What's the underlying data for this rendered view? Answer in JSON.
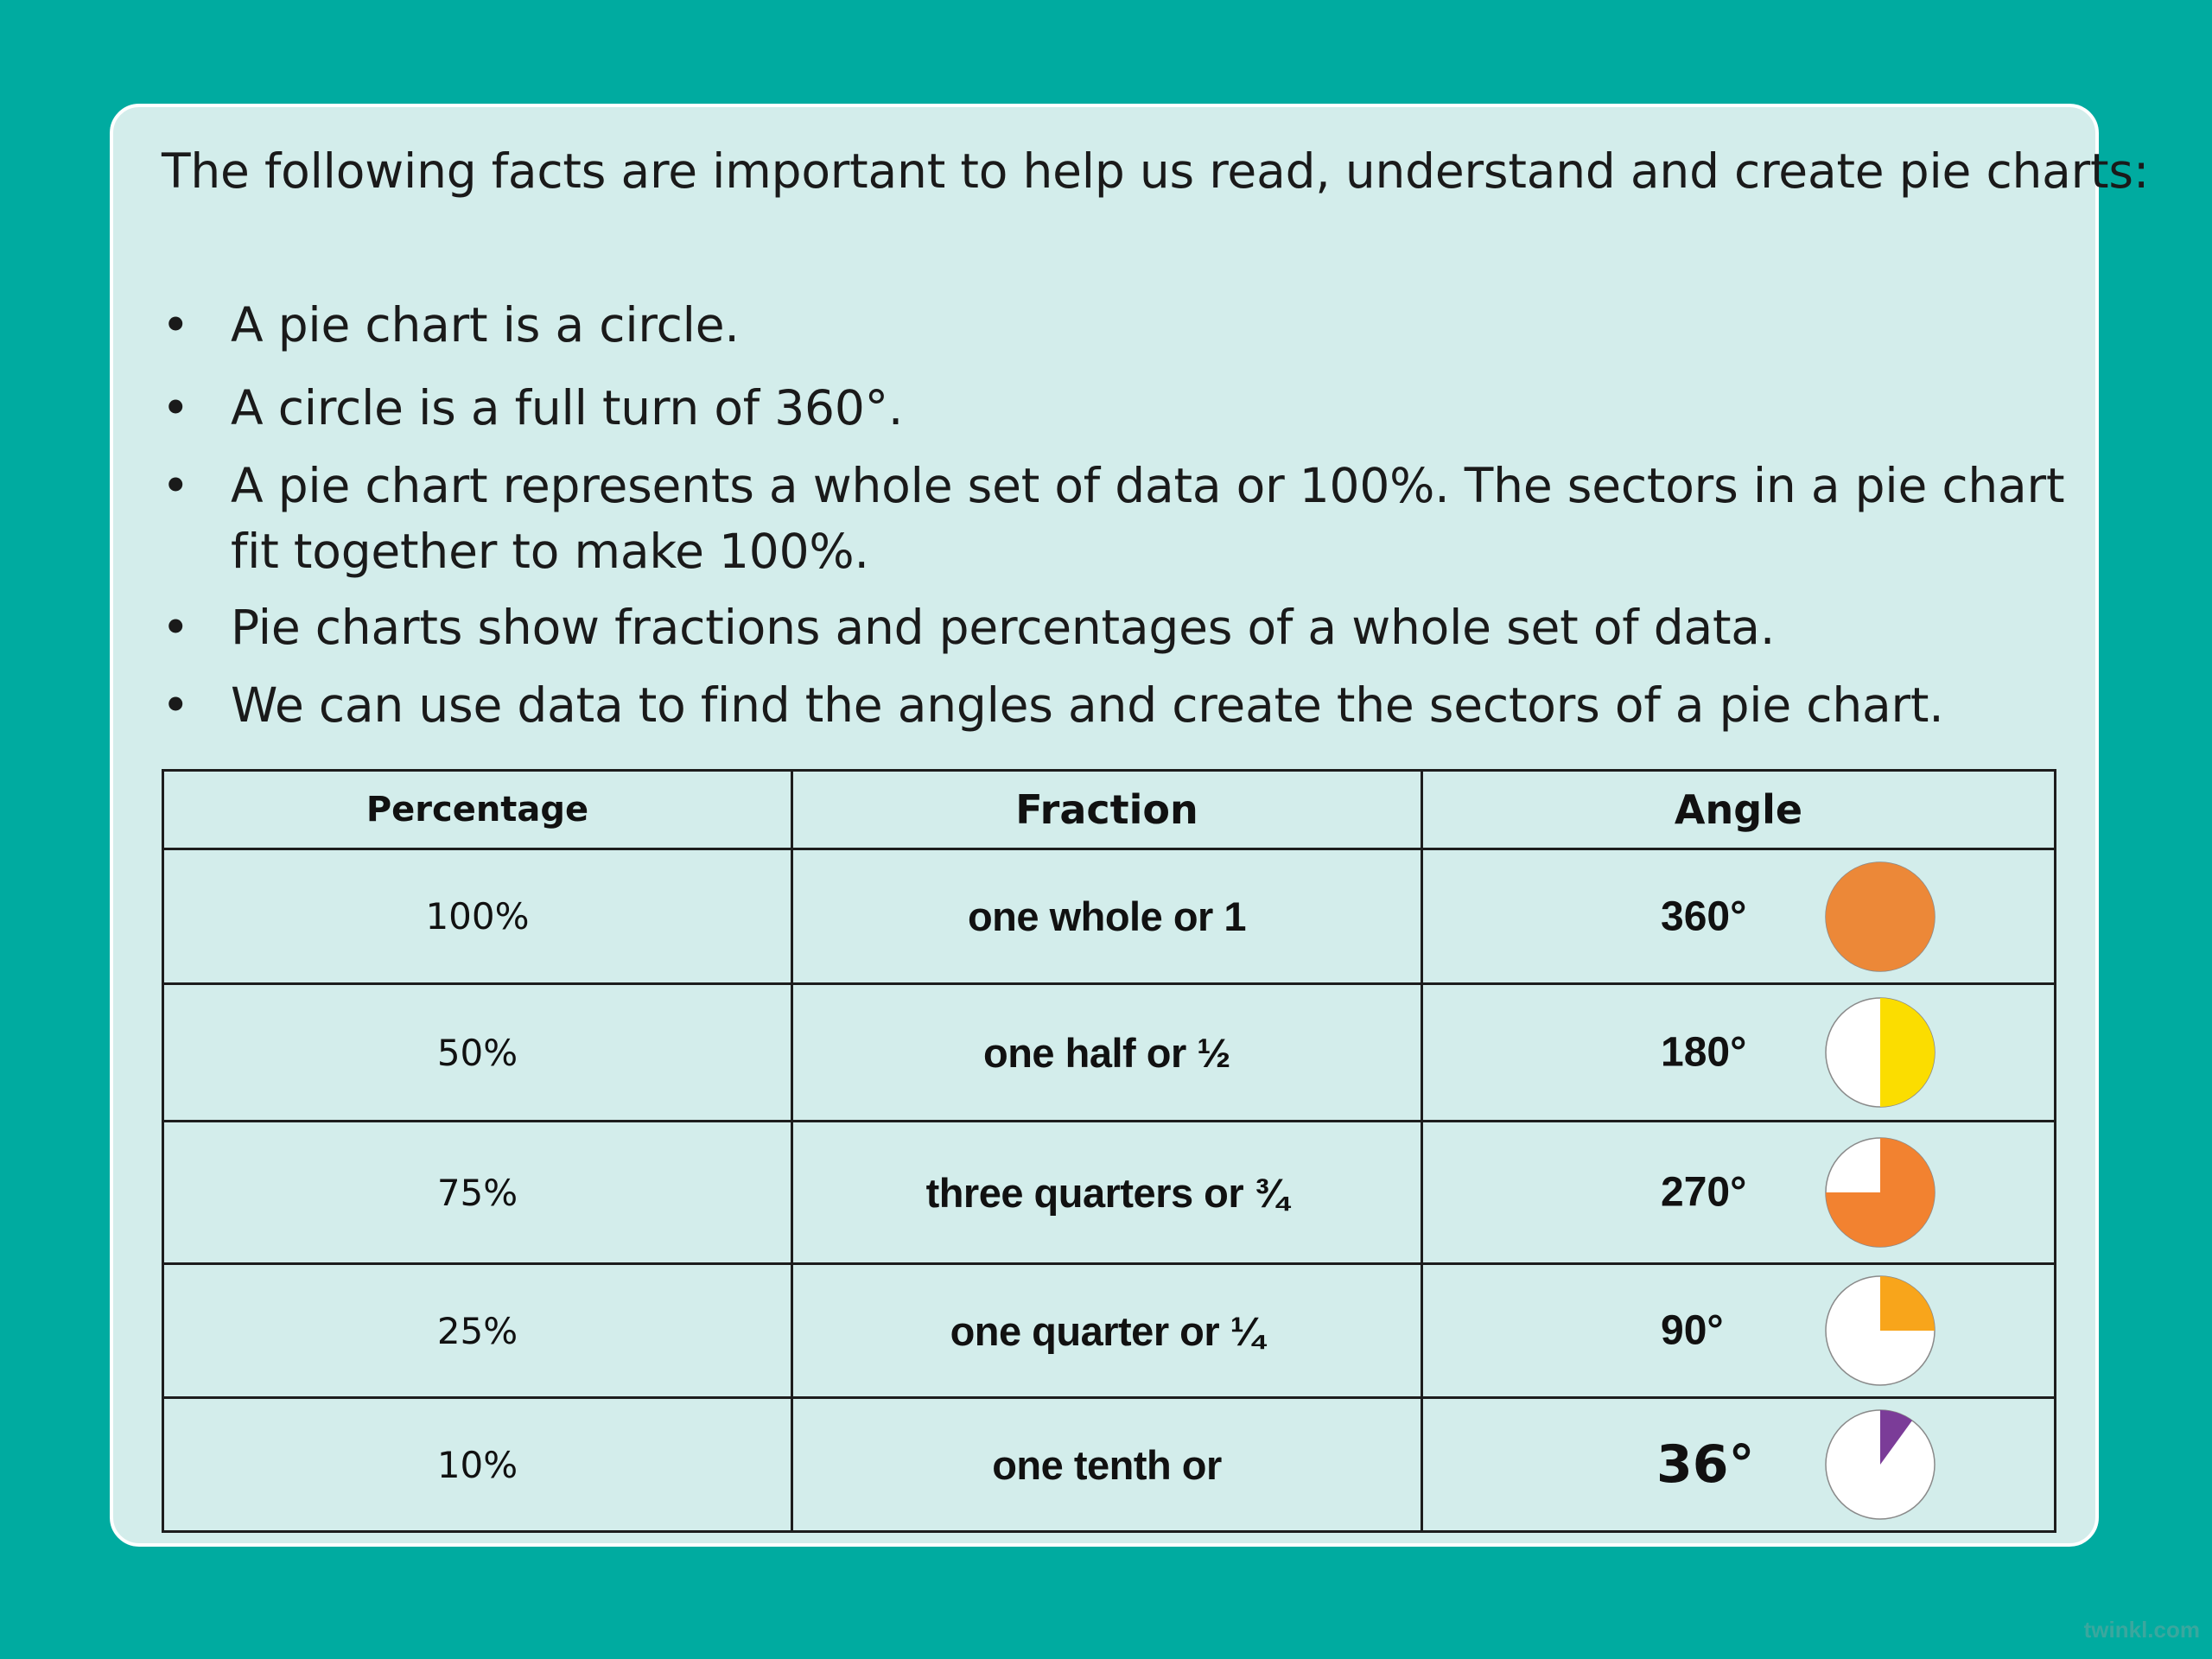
{
  "intro": "The following facts are important to help us read, understand and create pie charts:",
  "bullet_symbol": "•",
  "facts": [
    "A pie chart is a circle.",
    "A circle is a full turn of 360°.",
    "A pie chart represents a whole set of data or 100%. The sectors in a pie chart fit together to make 100%.",
    "Pie charts show fractions and percentages of a whole set of data.",
    "We can use data to find the angles and create the sectors of a pie chart."
  ],
  "table": {
    "headers": {
      "percentage": "Percentage",
      "fraction": "Fraction",
      "angle": "Angle"
    },
    "rows": [
      {
        "percentage": "100%",
        "fraction": "one whole or 1",
        "angle": "360°",
        "share": 1.0,
        "color": "#ec8838"
      },
      {
        "percentage": "50%",
        "fraction": "one half or ½",
        "angle": "180°",
        "share": 0.5,
        "color": "#fbdd00"
      },
      {
        "percentage": "75%",
        "fraction": "three quarters or ¾",
        "angle": "270°",
        "share": 0.75,
        "color": "#f28230"
      },
      {
        "percentage": "25%",
        "fraction": "one quarter or ¼",
        "angle": "90°",
        "share": 0.25,
        "color": "#f8a51b"
      },
      {
        "percentage": "10%",
        "fraction": "one tenth or",
        "angle": "36°",
        "share": 0.1,
        "color": "#7b3c98"
      }
    ]
  },
  "watermark": "twinkl.com"
}
